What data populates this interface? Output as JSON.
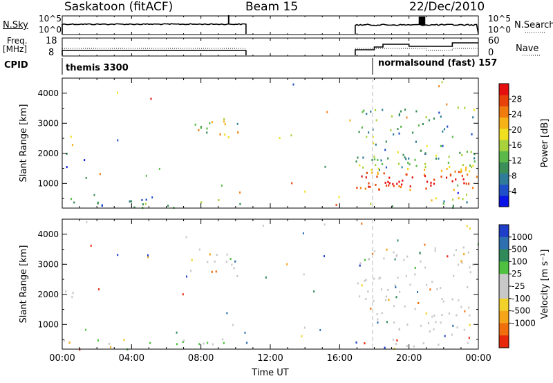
{
  "header": {
    "radar": "Saskatoon (fitACF)",
    "beam": "Beam 15",
    "date": "22/Dec/2010"
  },
  "strips": {
    "nsky_label": "N.Sky",
    "nsky_ticks": [
      "10^5",
      "10^0"
    ],
    "nsearch_label": "N.Search",
    "freq_label_top": "Freq.",
    "freq_label_unit": "[MHz]",
    "freq_ticks": [
      "18",
      "8"
    ],
    "nave_label": "Nave",
    "nave_ticks": [
      "60",
      "0"
    ],
    "cpid_label": "CPID",
    "cpid_1": "themis 3300",
    "cpid_2": "normalsound (fast) 157"
  },
  "chart_data": [
    {
      "type": "heatmap",
      "quantity": "power",
      "ylabel": "Slant Range [km]",
      "ylim": [
        180,
        4500
      ],
      "yticks": [
        1000,
        2000,
        3000,
        4000
      ],
      "xlim": [
        0,
        24
      ],
      "colorbar_label": "Power [dB]",
      "colorbar_ticks": [
        "4",
        "8",
        "12",
        "16",
        "20",
        "24",
        "28"
      ],
      "colorbar_colors": [
        "#0a14e6",
        "#1f4fc8",
        "#2e7c9a",
        "#3c8e58",
        "#5ab94a",
        "#a8d13c",
        "#f0e020",
        "#f7b218",
        "#f07c10",
        "#e8420a",
        "#e60f0f"
      ],
      "regions": [
        {
          "t0": 0.0,
          "t1": 0.8,
          "r0": 1900,
          "r1": 2700,
          "level": 0.5
        },
        {
          "t0": 6.9,
          "t1": 10.2,
          "r0": 2550,
          "r1": 3450,
          "level": 0.55
        },
        {
          "t0": 0.0,
          "t1": 10.6,
          "r0": 200,
          "r1": 550,
          "level": 0.3
        },
        {
          "t0": 16.9,
          "t1": 23.9,
          "r0": 800,
          "r1": 1900,
          "level": 0.8
        },
        {
          "t0": 16.9,
          "t1": 23.9,
          "r0": 1900,
          "r1": 3600,
          "level": 0.35
        },
        {
          "t0": 16.9,
          "t1": 23.9,
          "r0": 200,
          "r1": 550,
          "level": 0.45
        }
      ]
    },
    {
      "type": "heatmap",
      "quantity": "velocity",
      "xlabel": "Time UT",
      "ylabel": "Slant Range [km]",
      "ylim": [
        180,
        4500
      ],
      "yticks": [
        1000,
        2000,
        3000,
        4000
      ],
      "xlim": [
        0,
        24
      ],
      "xticks": [
        "00:00",
        "04:00",
        "08:00",
        "12:00",
        "16:00",
        "20:00",
        "00:00"
      ],
      "colorbar_label": "Velocity [m s⁻¹]",
      "colorbar_ticks": [
        "1000",
        "500",
        "100",
        "25",
        "-25",
        "-100",
        "-500",
        "-1000"
      ],
      "colorbar_colors": [
        "#1f3fc8",
        "#2e6fb0",
        "#2f8a5a",
        "#4fc040",
        "#c8c8c8",
        "#c8c8c8",
        "#f2d22a",
        "#f5a51a",
        "#f06e0e",
        "#e8280a"
      ],
      "regions": [
        {
          "t0": 0.0,
          "t1": 0.8,
          "r0": 1900,
          "r1": 2700,
          "level": 0.5
        },
        {
          "t0": 6.9,
          "t1": 10.2,
          "r0": 2550,
          "r1": 3450,
          "level": 0.5
        },
        {
          "t0": 0.0,
          "t1": 10.6,
          "r0": 200,
          "r1": 550,
          "level": 0.6
        },
        {
          "t0": 16.9,
          "t1": 23.9,
          "r0": 800,
          "r1": 1900,
          "level": 0.5
        },
        {
          "t0": 16.9,
          "t1": 23.9,
          "r0": 1900,
          "r1": 3600,
          "level": 0.5
        },
        {
          "t0": 16.9,
          "t1": 23.9,
          "r0": 200,
          "r1": 550,
          "level": 0.6
        }
      ]
    }
  ]
}
